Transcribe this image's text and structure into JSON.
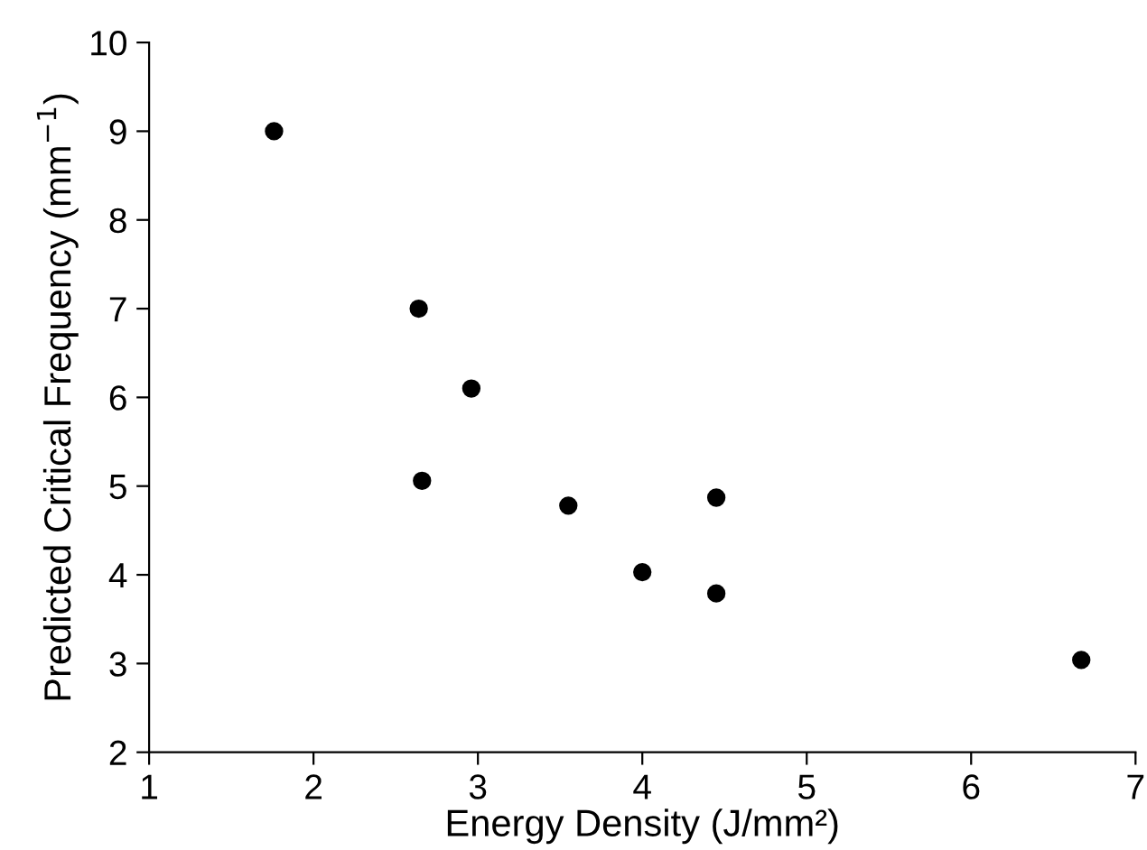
{
  "chart_data": {
    "type": "scatter",
    "xlabel": "Energy Density (J/mm²)",
    "ylabel": "Predicted Critical Frequency (mm$^{−1}$)",
    "x": [
      1.76,
      2.64,
      2.96,
      2.66,
      3.55,
      4.45,
      4.0,
      4.45,
      6.67
    ],
    "series": [
      {
        "color": "#000000",
        "values": [
          9.0,
          7.0,
          6.1,
          5.06,
          4.78,
          4.87,
          4.03,
          3.79,
          3.04
        ]
      }
    ],
    "xlim": [
      1,
      7
    ],
    "ylim": [
      2,
      10
    ],
    "xticks": [
      1,
      2,
      3,
      4,
      5,
      6,
      7
    ],
    "yticks": [
      2,
      3,
      4,
      5,
      6,
      7,
      8,
      9,
      10
    ],
    "grid": false,
    "legend": false,
    "marker": "circle"
  }
}
